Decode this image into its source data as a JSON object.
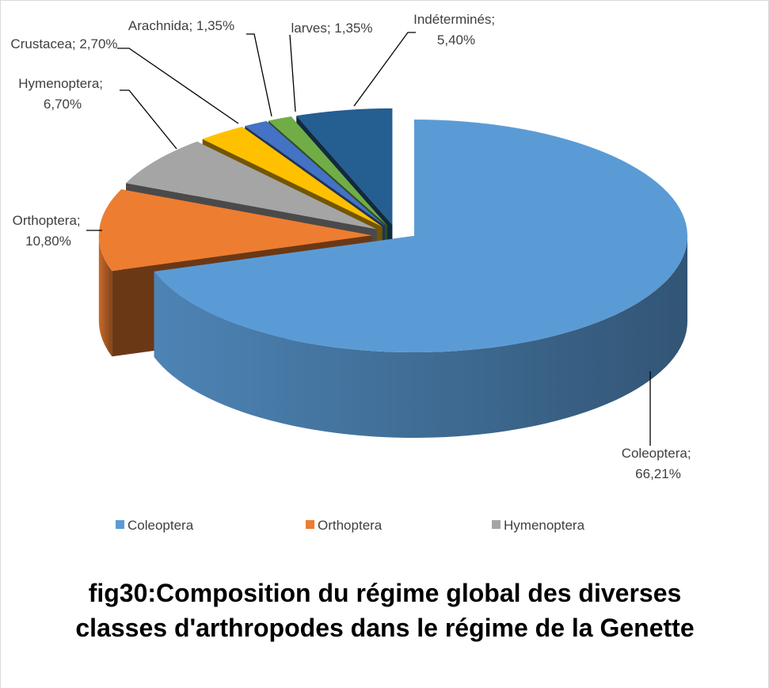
{
  "chart_data": {
    "type": "pie3d",
    "title": "fig30:Composition du régime global des diverses classes d'arthropodes dans le régime de la Genette",
    "categories": [
      "Coleoptera",
      "Orthoptera",
      "Hymenoptera",
      "Crustacea",
      "Arachnida",
      "larves",
      "Indéterminés"
    ],
    "values": [
      66.21,
      10.8,
      6.7,
      2.7,
      1.35,
      1.35,
      5.4
    ],
    "value_labels": [
      "Coleoptera; 66,21%",
      "Orthoptera; 10,80%",
      "Hymenoptera; 6,70%",
      "Crustacea; 2,70%",
      "Arachnida; 1,35%",
      "larves; 1,35%",
      "Indéterminés; 5,40%"
    ],
    "colors": [
      "#5b9bd5",
      "#ed7d31",
      "#a5a5a5",
      "#ffc000",
      "#4472c4",
      "#70ad47",
      "#255e91"
    ],
    "legend": "bottom"
  }
}
